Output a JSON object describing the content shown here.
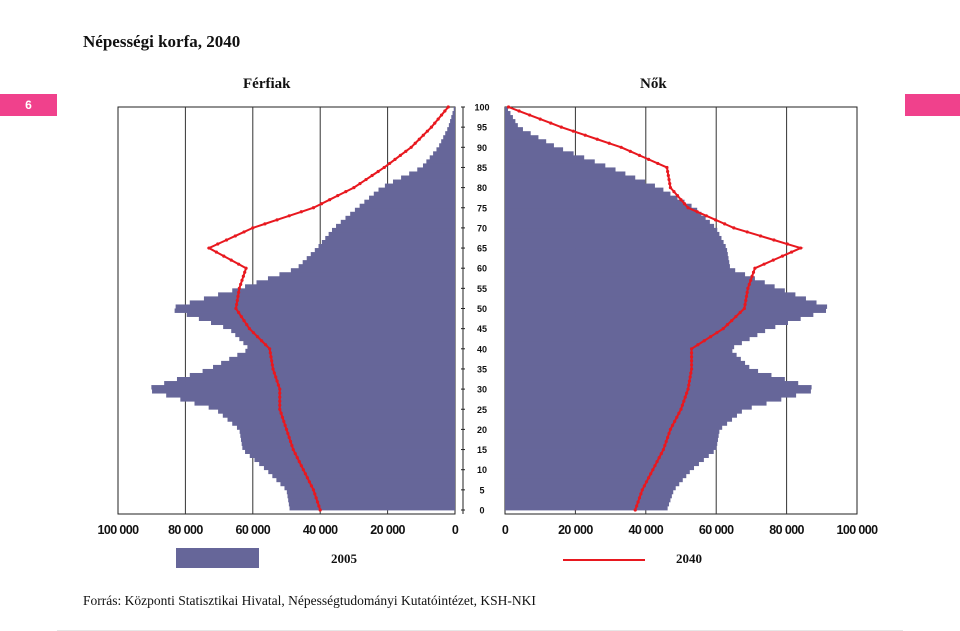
{
  "slide": {
    "number": "6"
  },
  "colors": {
    "accent": "#f0418c",
    "bars2005": "#666699",
    "line2040": "#e8181f"
  },
  "chart_data": {
    "type": "population-pyramid",
    "title": "Népességi korfa, 2040",
    "panels": [
      "Férfiak",
      "Nők"
    ],
    "age_axis": {
      "min": 0,
      "max": 100,
      "ticks": [
        "0",
        "5",
        "10",
        "15",
        "20",
        "25",
        "30",
        "35",
        "40",
        "45",
        "50",
        "55",
        "60",
        "65",
        "70",
        "75",
        "80",
        "85",
        "90",
        "95",
        "100"
      ]
    },
    "x_ticks_men": [
      "100 000",
      "80 000",
      "60 000",
      "40 000",
      "20 000",
      "0"
    ],
    "x_ticks_women": [
      "0",
      "20 000",
      "40 000",
      "60 000",
      "80 000",
      "100 000"
    ],
    "x_max": 100000,
    "grid": "vertical",
    "legend": [
      {
        "label": "2005",
        "kind": "bar"
      },
      {
        "label": "2040",
        "kind": "line"
      }
    ],
    "source": "Forrás: Központi Statisztikai Hivatal, Népességtudományi Kutatóintézet, KSH-NKI",
    "series": [
      {
        "name": "2005",
        "kind": "bar",
        "ages": [
          0,
          5,
          10,
          15,
          20,
          25,
          30,
          35,
          40,
          45,
          50,
          55,
          60,
          65,
          70,
          75,
          80,
          85,
          90,
          95,
          100
        ],
        "men": [
          49000,
          50000,
          56000,
          63000,
          64000,
          71000,
          92000,
          73000,
          61000,
          67000,
          85000,
          64000,
          47000,
          41000,
          36000,
          29000,
          22000,
          10000,
          5000,
          2000,
          200
        ],
        "women": [
          46000,
          48000,
          53000,
          60000,
          61000,
          68000,
          89000,
          70000,
          64000,
          75000,
          93000,
          78000,
          64000,
          63000,
          60000,
          54000,
          44000,
          30000,
          15000,
          4000,
          500
        ]
      },
      {
        "name": "2040",
        "kind": "line",
        "ages": [
          0,
          5,
          10,
          15,
          20,
          25,
          30,
          35,
          40,
          45,
          50,
          55,
          60,
          65,
          70,
          75,
          80,
          85,
          90,
          95,
          100
        ],
        "men": [
          40000,
          42000,
          45000,
          48000,
          50000,
          52000,
          52000,
          54000,
          55000,
          61000,
          65000,
          64000,
          62000,
          73000,
          60000,
          42000,
          30000,
          21000,
          13000,
          7000,
          2000
        ],
        "women": [
          37000,
          39000,
          42000,
          45000,
          47000,
          50000,
          52000,
          53000,
          53000,
          62000,
          68000,
          69000,
          71000,
          84000,
          65000,
          52000,
          47000,
          46000,
          33000,
          16000,
          1000
        ]
      }
    ]
  }
}
